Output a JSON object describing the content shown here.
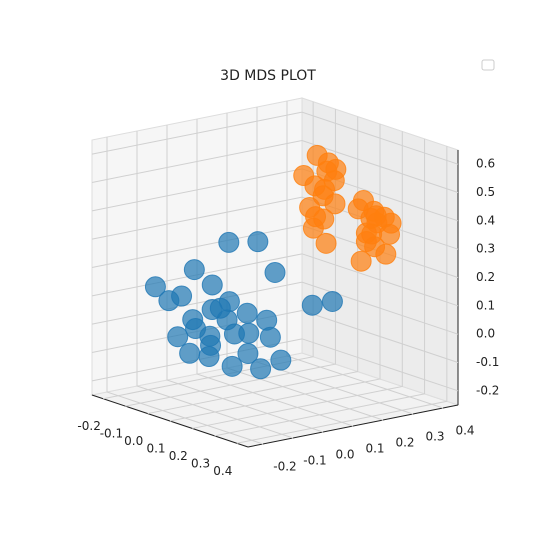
{
  "chart_data": {
    "type": "scatter3d",
    "title": "3D MDS PLOT",
    "xlim": [
      -0.25,
      0.45
    ],
    "ylim": [
      -0.25,
      0.45
    ],
    "zlim": [
      -0.25,
      0.65
    ],
    "xticks": [
      -0.2,
      -0.1,
      {
        "value": 0,
        "label": "0.0"
      },
      0.1,
      0.2,
      0.3,
      0.4
    ],
    "yticks": [
      -0.2,
      -0.1,
      {
        "value": 0,
        "label": "0.0"
      },
      0.1,
      0.2,
      0.3,
      0.4
    ],
    "zticks": [
      -0.2,
      -0.1,
      {
        "value": 0,
        "label": "0.0"
      },
      0.1,
      0.2,
      0.3,
      0.4,
      0.5,
      0.6
    ],
    "grid": true,
    "series": [
      {
        "color": "#1f77b4",
        "x": [
          -0.1,
          -0.08,
          -0.05,
          0.0,
          0.02,
          0.05,
          0.08,
          0.1,
          0.12,
          0.15,
          -0.02,
          0.03,
          0.06,
          0.09,
          0.11,
          0.14,
          0.17,
          0.0,
          0.04,
          0.07,
          -0.06,
          0.13,
          0.16,
          0.18,
          0.1,
          0.2,
          0.25,
          0.05,
          -0.04,
          0.08
        ],
        "y": [
          -0.15,
          -0.12,
          -0.1,
          -0.1,
          -0.05,
          -0.08,
          -0.1,
          -0.12,
          -0.05,
          -0.08,
          -0.02,
          0.0,
          -0.03,
          0.02,
          0.0,
          -0.02,
          0.0,
          -0.15,
          -0.14,
          -0.06,
          -0.05,
          0.05,
          0.04,
          0.06,
          0.1,
          0.15,
          0.18,
          0.08,
          0.05,
          -0.15
        ],
        "z": [
          0.15,
          0.1,
          0.12,
          0.05,
          0.08,
          0.0,
          -0.02,
          -0.05,
          0.02,
          -0.08,
          0.15,
          0.1,
          0.05,
          0.0,
          0.08,
          -0.05,
          -0.1,
          0.0,
          -0.05,
          0.1,
          0.2,
          0.05,
          0.0,
          -0.08,
          0.2,
          0.1,
          0.12,
          0.3,
          0.28,
          0.05
        ]
      },
      {
        "color": "#ff7f0e",
        "x": [
          0.02,
          0.05,
          0.08,
          0.0,
          0.03,
          0.06,
          0.1,
          0.04,
          0.07,
          0.01,
          0.09,
          0.05,
          0.03,
          0.08,
          0.06,
          0.12,
          0.15,
          0.18,
          0.14,
          0.2,
          0.16,
          0.13,
          0.19,
          0.17,
          0.11,
          0.15,
          0.21,
          0.18,
          0.14,
          0.16
        ],
        "y": [
          0.3,
          0.31,
          0.28,
          0.27,
          0.33,
          0.29,
          0.3,
          0.26,
          0.32,
          0.3,
          0.27,
          0.34,
          0.28,
          0.25,
          0.3,
          0.38,
          0.4,
          0.37,
          0.41,
          0.39,
          0.36,
          0.4,
          0.42,
          0.38,
          0.37,
          0.35,
          0.4,
          0.41,
          0.39,
          0.36
        ],
        "z": [
          0.55,
          0.5,
          0.45,
          0.48,
          0.52,
          0.42,
          0.4,
          0.38,
          0.47,
          0.44,
          0.35,
          0.5,
          0.3,
          0.36,
          0.25,
          0.4,
          0.35,
          0.38,
          0.32,
          0.36,
          0.3,
          0.28,
          0.33,
          0.25,
          0.37,
          0.2,
          0.3,
          0.22,
          0.34,
          0.27
        ]
      }
    ]
  }
}
